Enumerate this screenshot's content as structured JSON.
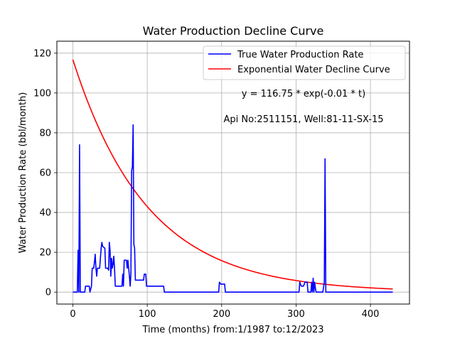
{
  "chart_data": {
    "type": "line",
    "title": "Water Production Decline Curve",
    "xlabel": "Time (months) from:1/1987 to:12/2023",
    "ylabel": "Water Production Rate (bbl/month)",
    "xlim": [
      -21.5,
      452.5
    ],
    "ylim": [
      -6,
      126
    ],
    "xticks": [
      0,
      100,
      200,
      300,
      400
    ],
    "yticks": [
      0,
      20,
      40,
      60,
      80,
      100,
      120
    ],
    "grid": true,
    "legend_position": "top-right",
    "annotations": [
      "y = 116.75 * exp(-0.01 * t)",
      "Api No:2511151, Well:81-11-SX-15"
    ],
    "series": [
      {
        "name": "True Water Production Rate",
        "color": "#0000ff",
        "points": [
          [
            0,
            0
          ],
          [
            6,
            0
          ],
          [
            7,
            21
          ],
          [
            8,
            0
          ],
          [
            9,
            74
          ],
          [
            10,
            0
          ],
          [
            16,
            0
          ],
          [
            17,
            3
          ],
          [
            22,
            3
          ],
          [
            23,
            0
          ],
          [
            25,
            3
          ],
          [
            26,
            12
          ],
          [
            28,
            12
          ],
          [
            29,
            15
          ],
          [
            30,
            19
          ],
          [
            31,
            12
          ],
          [
            32,
            8
          ],
          [
            33,
            12
          ],
          [
            36,
            12
          ],
          [
            38,
            22
          ],
          [
            39,
            25
          ],
          [
            40,
            23
          ],
          [
            43,
            22
          ],
          [
            44,
            12
          ],
          [
            47,
            12
          ],
          [
            48,
            11
          ],
          [
            49,
            25
          ],
          [
            50,
            21
          ],
          [
            51,
            8
          ],
          [
            52,
            17
          ],
          [
            53,
            12
          ],
          [
            54,
            14
          ],
          [
            55,
            18
          ],
          [
            56,
            12
          ],
          [
            57,
            3
          ],
          [
            66,
            3
          ],
          [
            67,
            9
          ],
          [
            68,
            3
          ],
          [
            69,
            16
          ],
          [
            72,
            16
          ],
          [
            73,
            12
          ],
          [
            74,
            16
          ],
          [
            76,
            8
          ],
          [
            77,
            3
          ],
          [
            78,
            9
          ],
          [
            79,
            61
          ],
          [
            80,
            63
          ],
          [
            81,
            84
          ],
          [
            82,
            24
          ],
          [
            83,
            22
          ],
          [
            84,
            6
          ],
          [
            95,
            6
          ],
          [
            96,
            9
          ],
          [
            98,
            9
          ],
          [
            99,
            3
          ],
          [
            122,
            3
          ],
          [
            123,
            0
          ],
          [
            196,
            0
          ],
          [
            197,
            5
          ],
          [
            199,
            4
          ],
          [
            204,
            4
          ],
          [
            205,
            0
          ],
          [
            304,
            0
          ],
          [
            305,
            5
          ],
          [
            307,
            3
          ],
          [
            310,
            3
          ],
          [
            312,
            5
          ],
          [
            315,
            5
          ],
          [
            316,
            0
          ],
          [
            320,
            0
          ],
          [
            321,
            5
          ],
          [
            322,
            0
          ],
          [
            323,
            7
          ],
          [
            324,
            0
          ],
          [
            325,
            5
          ],
          [
            326,
            2
          ],
          [
            327,
            0
          ],
          [
            336,
            0
          ],
          [
            338,
            5
          ],
          [
            339,
            67
          ],
          [
            340,
            0
          ],
          [
            430,
            0
          ]
        ]
      },
      {
        "name": "Exponential Water Decline Curve",
        "color": "#ff0000",
        "model": {
          "a": 116.75,
          "b": 0.01,
          "t_start": 0,
          "t_end": 430
        }
      }
    ]
  }
}
